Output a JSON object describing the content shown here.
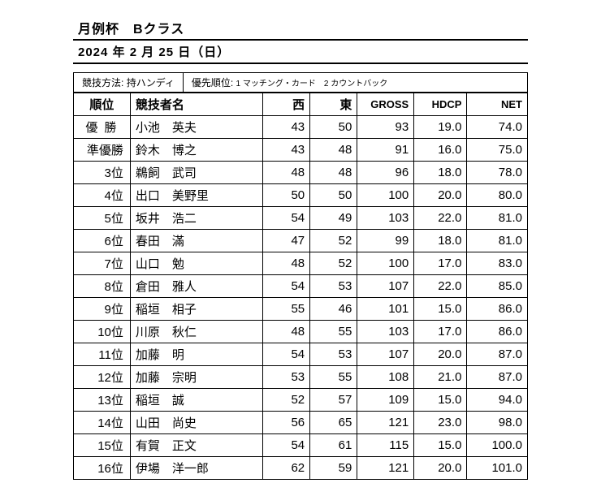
{
  "title": "月例杯　Bクラス",
  "date": "2024 年 2 月 25 日（日）",
  "meta": {
    "method_label": "競技方法:",
    "method_value": "持ハンディ",
    "priority_label": "優先順位:",
    "priority_value": "1 マッチング・カード　2 カウントバック"
  },
  "headers": {
    "rank": "順位",
    "name": "競技者名",
    "west": "西",
    "east": "東",
    "gross": "GROSS",
    "hdcp": "HDCP",
    "net": "NET"
  },
  "rows": [
    {
      "rank": "優勝",
      "rank_special": true,
      "name": "小池　英夫",
      "west": "43",
      "east": "50",
      "gross": "93",
      "hdcp": "19.0",
      "net": "74.0"
    },
    {
      "rank": "準優勝",
      "name": "鈴木　博之",
      "west": "43",
      "east": "48",
      "gross": "91",
      "hdcp": "16.0",
      "net": "75.0"
    },
    {
      "rank": "3位",
      "name": "鵜飼　武司",
      "west": "48",
      "east": "48",
      "gross": "96",
      "hdcp": "18.0",
      "net": "78.0"
    },
    {
      "rank": "4位",
      "name": "出口　美野里",
      "west": "50",
      "east": "50",
      "gross": "100",
      "hdcp": "20.0",
      "net": "80.0"
    },
    {
      "rank": "5位",
      "name": "坂井　浩二",
      "west": "54",
      "east": "49",
      "gross": "103",
      "hdcp": "22.0",
      "net": "81.0"
    },
    {
      "rank": "6位",
      "name": "春田　滿",
      "west": "47",
      "east": "52",
      "gross": "99",
      "hdcp": "18.0",
      "net": "81.0"
    },
    {
      "rank": "7位",
      "name": "山口　勉",
      "west": "48",
      "east": "52",
      "gross": "100",
      "hdcp": "17.0",
      "net": "83.0"
    },
    {
      "rank": "8位",
      "name": "倉田　雅人",
      "west": "54",
      "east": "53",
      "gross": "107",
      "hdcp": "22.0",
      "net": "85.0"
    },
    {
      "rank": "9位",
      "name": "稲垣　相子",
      "west": "55",
      "east": "46",
      "gross": "101",
      "hdcp": "15.0",
      "net": "86.0"
    },
    {
      "rank": "10位",
      "name": "川原　秋仁",
      "west": "48",
      "east": "55",
      "gross": "103",
      "hdcp": "17.0",
      "net": "86.0"
    },
    {
      "rank": "11位",
      "name": "加藤　明",
      "west": "54",
      "east": "53",
      "gross": "107",
      "hdcp": "20.0",
      "net": "87.0"
    },
    {
      "rank": "12位",
      "name": "加藤　宗明",
      "west": "53",
      "east": "55",
      "gross": "108",
      "hdcp": "21.0",
      "net": "87.0"
    },
    {
      "rank": "13位",
      "name": "稲垣　誠",
      "west": "52",
      "east": "57",
      "gross": "109",
      "hdcp": "15.0",
      "net": "94.0"
    },
    {
      "rank": "14位",
      "name": "山田　尚史",
      "west": "56",
      "east": "65",
      "gross": "121",
      "hdcp": "23.0",
      "net": "98.0"
    },
    {
      "rank": "15位",
      "name": "有賀　正文",
      "west": "54",
      "east": "61",
      "gross": "115",
      "hdcp": "15.0",
      "net": "100.0"
    },
    {
      "rank": "16位",
      "name": "伊場　洋一郎",
      "west": "62",
      "east": "59",
      "gross": "121",
      "hdcp": "20.0",
      "net": "101.0"
    }
  ]
}
